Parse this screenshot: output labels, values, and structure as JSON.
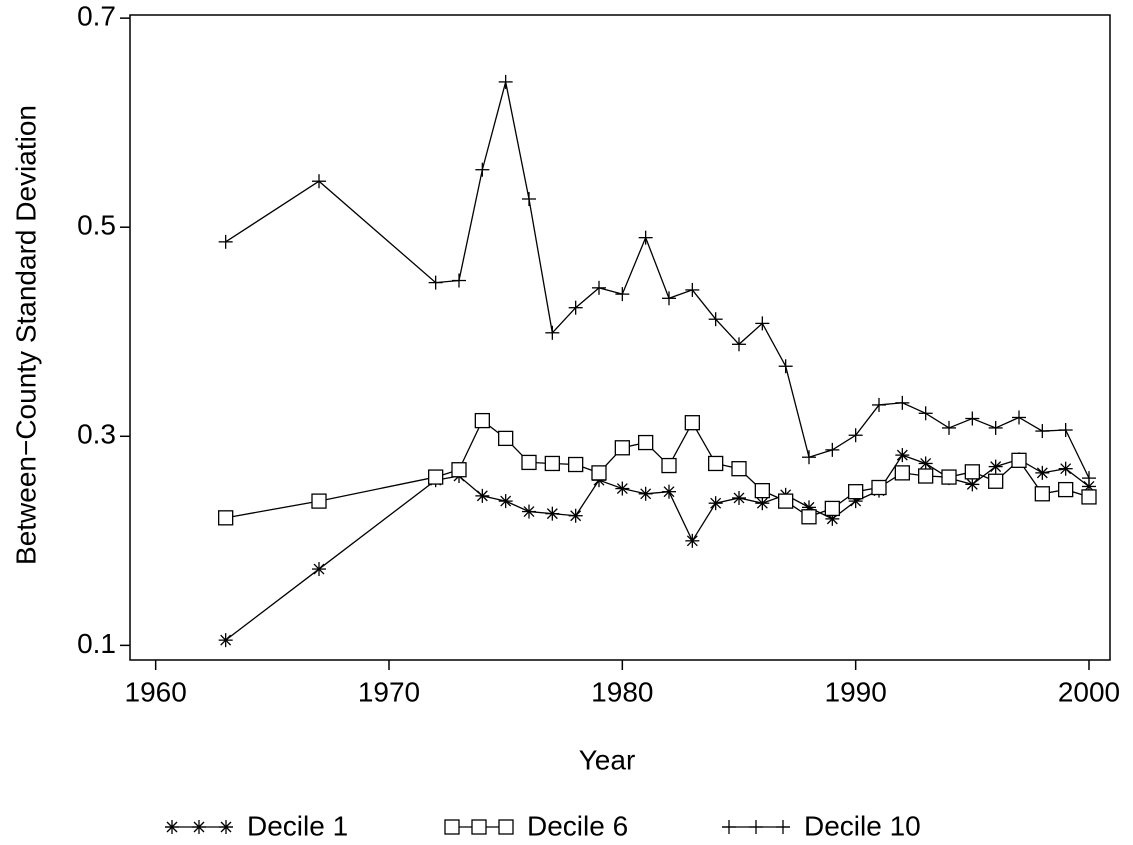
{
  "chart_data": {
    "type": "line",
    "x": [
      1963,
      1967,
      1972,
      1973,
      1974,
      1975,
      1976,
      1977,
      1978,
      1979,
      1980,
      1981,
      1982,
      1983,
      1984,
      1985,
      1986,
      1987,
      1988,
      1989,
      1990,
      1991,
      1992,
      1993,
      1994,
      1995,
      1996,
      1997,
      1998,
      1999,
      2000
    ],
    "series": [
      {
        "name": "Decile 1",
        "color": "#000000",
        "marker": "asterisk",
        "values": [
          0.105,
          0.173,
          0.258,
          0.262,
          0.243,
          0.238,
          0.228,
          0.226,
          0.224,
          0.258,
          0.25,
          0.245,
          0.247,
          0.2,
          0.236,
          0.241,
          0.236,
          0.244,
          0.232,
          0.221,
          0.238,
          0.248,
          0.282,
          0.274,
          0.26,
          0.254,
          0.271,
          0.278,
          0.265,
          0.269,
          0.252
        ]
      },
      {
        "name": "Decile 6",
        "color": "#000000",
        "marker": "square",
        "values": [
          0.222,
          0.238,
          0.261,
          0.268,
          0.315,
          0.298,
          0.275,
          0.274,
          0.273,
          0.265,
          0.289,
          0.294,
          0.272,
          0.313,
          0.274,
          0.269,
          0.248,
          0.238,
          0.223,
          0.231,
          0.247,
          0.251,
          0.265,
          0.262,
          0.261,
          0.266,
          0.257,
          0.277,
          0.245,
          0.249,
          0.242
        ]
      },
      {
        "name": "Decile 10",
        "color": "#000000",
        "marker": "plus",
        "values": [
          0.486,
          0.544,
          0.447,
          0.449,
          0.555,
          0.639,
          0.527,
          0.399,
          0.423,
          0.442,
          0.436,
          0.49,
          0.432,
          0.44,
          0.412,
          0.388,
          0.408,
          0.367,
          0.28,
          0.287,
          0.301,
          0.33,
          0.332,
          0.322,
          0.308,
          0.317,
          0.308,
          0.318,
          0.305,
          0.306,
          0.26
        ]
      }
    ],
    "x_label": "Year",
    "y_label": "Between−County Standard Deviation",
    "xlim": [
      1958.9,
      2000.9
    ],
    "xticks": [
      1960,
      1970,
      1980,
      1990,
      2000
    ],
    "ylim": [
      0.086,
      0.703
    ],
    "yticks": [
      0.1,
      0.3,
      0.5,
      0.7
    ],
    "legend": "bottom"
  }
}
